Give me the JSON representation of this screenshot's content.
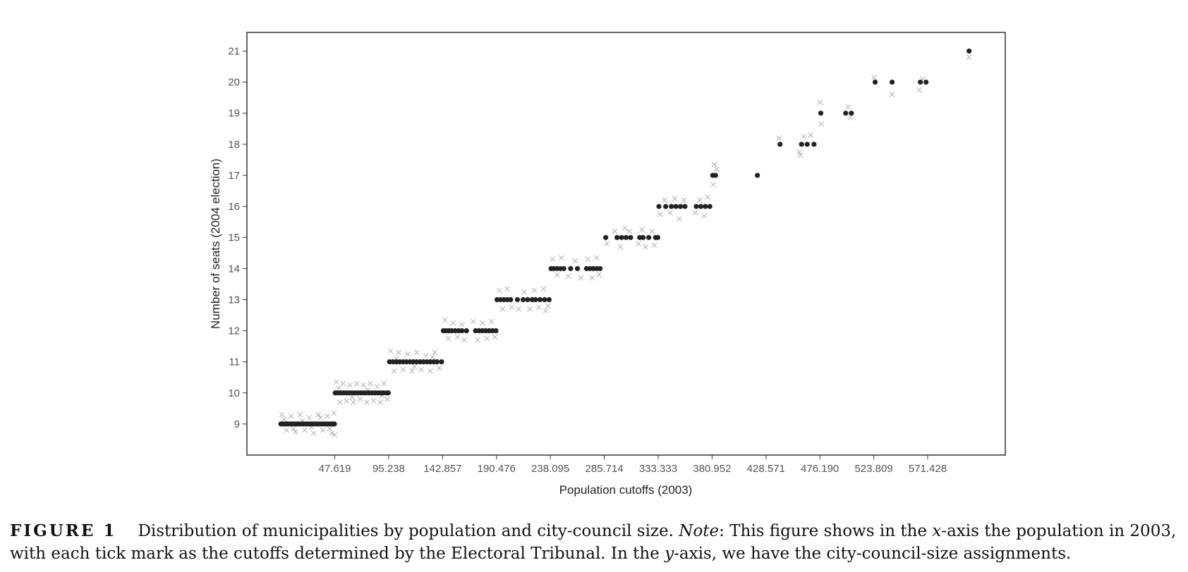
{
  "chart_data": {
    "type": "scatter",
    "title": "",
    "xlabel": "Population cutoffs (2003)",
    "ylabel": "Number of seats (2004 election)",
    "x_ticks": [
      47619,
      95238,
      142857,
      190476,
      238095,
      285714,
      333333,
      380952,
      428571,
      476190,
      523809,
      571428
    ],
    "x_tick_labels": [
      "47.619",
      "95.238",
      "142.857",
      "190.476",
      "238.095",
      "285.714",
      "333.333",
      "380.952",
      "428.571",
      "476.190",
      "523.809",
      "571.428"
    ],
    "y_ticks": [
      9,
      10,
      11,
      12,
      13,
      14,
      15,
      16,
      17,
      18,
      19,
      20,
      21
    ],
    "xlim": [
      -30000,
      640000
    ],
    "ylim": [
      8.0,
      21.6
    ],
    "grid": false,
    "legend": "none",
    "series": [
      {
        "marker": "dot",
        "color": "#222222",
        "points": [
          [
            0,
            9
          ],
          [
            2000,
            9
          ],
          [
            4000,
            9
          ],
          [
            6000,
            9
          ],
          [
            8000,
            9
          ],
          [
            10000,
            9
          ],
          [
            12000,
            9
          ],
          [
            14000,
            9
          ],
          [
            16000,
            9
          ],
          [
            18000,
            9
          ],
          [
            20000,
            9
          ],
          [
            22000,
            9
          ],
          [
            24000,
            9
          ],
          [
            26000,
            9
          ],
          [
            28000,
            9
          ],
          [
            30000,
            9
          ],
          [
            32000,
            9
          ],
          [
            34000,
            9
          ],
          [
            36000,
            9
          ],
          [
            38000,
            9
          ],
          [
            40000,
            9
          ],
          [
            42000,
            9
          ],
          [
            44000,
            9
          ],
          [
            46000,
            9
          ],
          [
            47300,
            9
          ],
          [
            48000,
            10
          ],
          [
            50500,
            10
          ],
          [
            53000,
            10
          ],
          [
            55500,
            10
          ],
          [
            58000,
            10
          ],
          [
            60500,
            10
          ],
          [
            63000,
            10
          ],
          [
            65500,
            10
          ],
          [
            68000,
            10
          ],
          [
            70500,
            10
          ],
          [
            73000,
            10
          ],
          [
            75500,
            10
          ],
          [
            78000,
            10
          ],
          [
            80500,
            10
          ],
          [
            83000,
            10
          ],
          [
            85500,
            10
          ],
          [
            88000,
            10
          ],
          [
            90500,
            10
          ],
          [
            93000,
            10
          ],
          [
            94900,
            10
          ],
          [
            96000,
            11
          ],
          [
            99000,
            11
          ],
          [
            102000,
            11
          ],
          [
            105000,
            11
          ],
          [
            108000,
            11
          ],
          [
            111000,
            11
          ],
          [
            114000,
            11
          ],
          [
            117000,
            11
          ],
          [
            120000,
            11
          ],
          [
            123000,
            11
          ],
          [
            126000,
            11
          ],
          [
            129000,
            11
          ],
          [
            132000,
            11
          ],
          [
            135000,
            11
          ],
          [
            138000,
            11
          ],
          [
            142000,
            11
          ],
          [
            143500,
            12
          ],
          [
            146000,
            12
          ],
          [
            148500,
            12
          ],
          [
            151000,
            12
          ],
          [
            154000,
            12
          ],
          [
            157000,
            12
          ],
          [
            160000,
            12
          ],
          [
            164000,
            12
          ],
          [
            172000,
            12
          ],
          [
            175000,
            12
          ],
          [
            178000,
            12
          ],
          [
            181000,
            12
          ],
          [
            184000,
            12
          ],
          [
            187000,
            12
          ],
          [
            190000,
            12
          ],
          [
            191000,
            13
          ],
          [
            194000,
            13
          ],
          [
            197000,
            13
          ],
          [
            200000,
            13
          ],
          [
            203000,
            13
          ],
          [
            209000,
            13
          ],
          [
            214000,
            13
          ],
          [
            218000,
            13
          ],
          [
            222000,
            13
          ],
          [
            225000,
            13
          ],
          [
            229000,
            13
          ],
          [
            233000,
            13
          ],
          [
            237000,
            13
          ],
          [
            238700,
            14
          ],
          [
            241000,
            14
          ],
          [
            244000,
            14
          ],
          [
            247000,
            14
          ],
          [
            250000,
            14
          ],
          [
            256000,
            14
          ],
          [
            262000,
            14
          ],
          [
            270000,
            14
          ],
          [
            273000,
            14
          ],
          [
            276000,
            14
          ],
          [
            279000,
            14
          ],
          [
            282000,
            14
          ],
          [
            287000,
            15
          ],
          [
            297000,
            15
          ],
          [
            301000,
            15
          ],
          [
            305000,
            15
          ],
          [
            309000,
            15
          ],
          [
            317000,
            15
          ],
          [
            320000,
            15
          ],
          [
            325000,
            15
          ],
          [
            331000,
            15
          ],
          [
            333000,
            15
          ],
          [
            334000,
            16
          ],
          [
            340000,
            16
          ],
          [
            345000,
            16
          ],
          [
            349000,
            16
          ],
          [
            353000,
            16
          ],
          [
            357000,
            16
          ],
          [
            367000,
            16
          ],
          [
            371000,
            16
          ],
          [
            375000,
            16
          ],
          [
            379000,
            16
          ],
          [
            381500,
            17
          ],
          [
            384000,
            17
          ],
          [
            421000,
            17
          ],
          [
            441000,
            18
          ],
          [
            460000,
            18
          ],
          [
            465000,
            18
          ],
          [
            471000,
            18
          ],
          [
            477000,
            19
          ],
          [
            499000,
            19
          ],
          [
            504000,
            19
          ],
          [
            525000,
            20
          ],
          [
            540000,
            20
          ],
          [
            565000,
            20
          ],
          [
            570000,
            20
          ],
          [
            608000,
            21
          ]
        ]
      },
      {
        "marker": "x",
        "color": "#9e9e9e",
        "points": [
          [
            1000,
            9.3
          ],
          [
            5000,
            8.8
          ],
          [
            9000,
            9.25
          ],
          [
            13000,
            8.75
          ],
          [
            17000,
            9.3
          ],
          [
            21000,
            8.8
          ],
          [
            25000,
            9.2
          ],
          [
            29000,
            8.7
          ],
          [
            33000,
            9.3
          ],
          [
            37000,
            8.8
          ],
          [
            41000,
            9.25
          ],
          [
            45000,
            8.7
          ],
          [
            47000,
            9.35
          ],
          [
            3000,
            9.15
          ],
          [
            11000,
            8.85
          ],
          [
            19000,
            9.1
          ],
          [
            27000,
            8.9
          ],
          [
            35000,
            9.2
          ],
          [
            43000,
            8.85
          ],
          [
            47500,
            8.65
          ],
          [
            49000,
            10.35
          ],
          [
            52000,
            9.7
          ],
          [
            55000,
            10.3
          ],
          [
            58000,
            9.75
          ],
          [
            61000,
            10.25
          ],
          [
            64000,
            9.7
          ],
          [
            67000,
            10.3
          ],
          [
            70000,
            9.8
          ],
          [
            73000,
            10.25
          ],
          [
            76000,
            9.7
          ],
          [
            79000,
            10.3
          ],
          [
            82000,
            9.75
          ],
          [
            85000,
            10.2
          ],
          [
            88000,
            9.7
          ],
          [
            91000,
            10.3
          ],
          [
            94000,
            9.8
          ],
          [
            51000,
            10.15
          ],
          [
            63000,
            9.85
          ],
          [
            77000,
            10.1
          ],
          [
            89000,
            9.9
          ],
          [
            97000,
            11.35
          ],
          [
            100000,
            10.7
          ],
          [
            104000,
            11.3
          ],
          [
            108000,
            10.75
          ],
          [
            112000,
            11.25
          ],
          [
            116000,
            10.7
          ],
          [
            120000,
            11.3
          ],
          [
            124000,
            10.75
          ],
          [
            128000,
            11.2
          ],
          [
            132000,
            10.7
          ],
          [
            136000,
            11.3
          ],
          [
            140000,
            10.8
          ],
          [
            102000,
            11.1
          ],
          [
            118000,
            10.85
          ],
          [
            134000,
            11.15
          ],
          [
            145000,
            12.35
          ],
          [
            148000,
            11.75
          ],
          [
            152000,
            12.25
          ],
          [
            156000,
            11.8
          ],
          [
            160000,
            12.2
          ],
          [
            170000,
            12.3
          ],
          [
            174000,
            11.7
          ],
          [
            178000,
            12.25
          ],
          [
            182000,
            11.75
          ],
          [
            186000,
            12.3
          ],
          [
            189000,
            11.8
          ],
          [
            162000,
            11.7
          ],
          [
            193000,
            13.3
          ],
          [
            196000,
            12.7
          ],
          [
            200000,
            13.35
          ],
          [
            204000,
            12.75
          ],
          [
            210000,
            12.7
          ],
          [
            215000,
            13.25
          ],
          [
            220000,
            12.7
          ],
          [
            224000,
            13.3
          ],
          [
            228000,
            12.75
          ],
          [
            232000,
            13.35
          ],
          [
            236000,
            12.8
          ],
          [
            234000,
            12.65
          ],
          [
            240000,
            14.3
          ],
          [
            244000,
            13.8
          ],
          [
            248000,
            14.35
          ],
          [
            254000,
            13.75
          ],
          [
            260000,
            14.25
          ],
          [
            265000,
            13.7
          ],
          [
            271000,
            14.3
          ],
          [
            275000,
            13.7
          ],
          [
            279000,
            14.35
          ],
          [
            281000,
            13.8
          ],
          [
            288000,
            14.8
          ],
          [
            295000,
            15.2
          ],
          [
            300000,
            14.7
          ],
          [
            304000,
            15.3
          ],
          [
            308000,
            15.2
          ],
          [
            316000,
            14.8
          ],
          [
            319000,
            15.25
          ],
          [
            322000,
            14.7
          ],
          [
            328000,
            15.2
          ],
          [
            330000,
            14.75
          ],
          [
            335000,
            15.75
          ],
          [
            339000,
            16.2
          ],
          [
            344000,
            15.8
          ],
          [
            348000,
            16.25
          ],
          [
            352000,
            15.6
          ],
          [
            356000,
            16.2
          ],
          [
            366000,
            15.8
          ],
          [
            370000,
            16.2
          ],
          [
            374000,
            15.7
          ],
          [
            377000,
            16.3
          ],
          [
            382000,
            16.7
          ],
          [
            383000,
            17.35
          ],
          [
            385000,
            17.2
          ],
          [
            440000,
            18.2
          ],
          [
            458000,
            17.75
          ],
          [
            462000,
            18.25
          ],
          [
            468000,
            18.3
          ],
          [
            459000,
            17.65
          ],
          [
            476500,
            19.35
          ],
          [
            477500,
            18.65
          ],
          [
            501000,
            19.2
          ],
          [
            503000,
            18.85
          ],
          [
            524000,
            20.15
          ],
          [
            540000,
            19.6
          ],
          [
            564000,
            19.75
          ],
          [
            567000,
            20.1
          ],
          [
            608000,
            20.8
          ]
        ]
      }
    ]
  },
  "caption": {
    "label": "FIGURE 1",
    "lead": "Distribution of municipalities by population and city-council size.",
    "note_word": "Note",
    "part1": ": This figure shows in the ",
    "x_var": "x",
    "part2": "-axis the population in 2003, with each tick mark as the cutoffs determined by the Electoral Tribunal. In the ",
    "y_var": "y",
    "part3": "-axis, we have the city-council-size assignments."
  }
}
